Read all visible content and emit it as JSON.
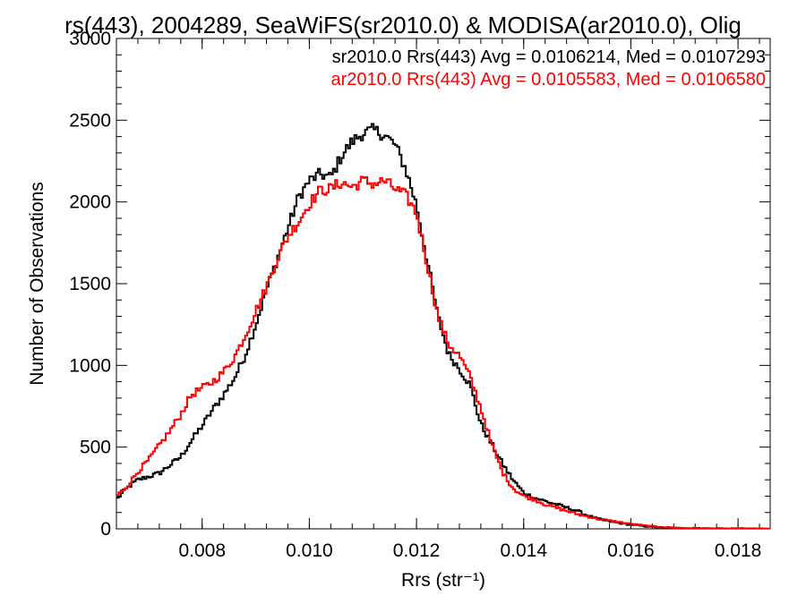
{
  "chart_data": {
    "type": "line",
    "title": "rs(443), 2004289, SeaWiFS(sr2010.0) & MODISA(ar2010.0), Olig",
    "xlabel": "Rrs (str⁻¹)",
    "ylabel": "Number of Observations",
    "xlim": [
      0.0064,
      0.0186
    ],
    "ylim": [
      0,
      3000
    ],
    "x_ticks": [
      "0.008",
      "0.010",
      "0.012",
      "0.014",
      "0.016",
      "0.018"
    ],
    "y_ticks": [
      "0",
      "500",
      "1000",
      "1500",
      "2000",
      "2500",
      "3000"
    ],
    "grid": false,
    "legend_position": "top-right",
    "step_style": "histogram",
    "series": [
      {
        "name": "sr2010.0 Rrs(443) Avg = 0.0106214, Med = 0.0107293",
        "color": "#000000",
        "points": [
          [
            0.0064,
            180
          ],
          [
            0.0066,
            250
          ],
          [
            0.0068,
            300
          ],
          [
            0.007,
            320
          ],
          [
            0.0072,
            340
          ],
          [
            0.0074,
            390
          ],
          [
            0.0076,
            440
          ],
          [
            0.0078,
            540
          ],
          [
            0.008,
            630
          ],
          [
            0.0082,
            730
          ],
          [
            0.0084,
            820
          ],
          [
            0.0086,
            920
          ],
          [
            0.0088,
            1060
          ],
          [
            0.009,
            1250
          ],
          [
            0.0092,
            1460
          ],
          [
            0.0094,
            1650
          ],
          [
            0.0096,
            1840
          ],
          [
            0.0098,
            2030
          ],
          [
            0.01,
            2130
          ],
          [
            0.0102,
            2170
          ],
          [
            0.0104,
            2150
          ],
          [
            0.0106,
            2280
          ],
          [
            0.0108,
            2370
          ],
          [
            0.011,
            2420
          ],
          [
            0.0112,
            2440
          ],
          [
            0.0114,
            2410
          ],
          [
            0.0116,
            2350
          ],
          [
            0.0118,
            2200
          ],
          [
            0.012,
            1980
          ],
          [
            0.0122,
            1640
          ],
          [
            0.0124,
            1300
          ],
          [
            0.0126,
            1070
          ],
          [
            0.0128,
            980
          ],
          [
            0.013,
            880
          ],
          [
            0.0132,
            640
          ],
          [
            0.0134,
            520
          ],
          [
            0.0136,
            400
          ],
          [
            0.0138,
            300
          ],
          [
            0.014,
            220
          ],
          [
            0.0142,
            190
          ],
          [
            0.0144,
            170
          ],
          [
            0.0146,
            150
          ],
          [
            0.0148,
            130
          ],
          [
            0.015,
            110
          ],
          [
            0.0152,
            80
          ],
          [
            0.0154,
            60
          ],
          [
            0.0156,
            45
          ],
          [
            0.0158,
            35
          ],
          [
            0.016,
            25
          ],
          [
            0.0162,
            18
          ],
          [
            0.0164,
            12
          ],
          [
            0.0166,
            8
          ],
          [
            0.0168,
            6
          ],
          [
            0.017,
            4
          ],
          [
            0.0172,
            3
          ],
          [
            0.0174,
            2
          ],
          [
            0.0176,
            2
          ],
          [
            0.0178,
            1
          ],
          [
            0.018,
            1
          ],
          [
            0.0182,
            1
          ],
          [
            0.0184,
            0
          ],
          [
            0.0186,
            0
          ]
        ]
      },
      {
        "name": "ar2010.0 Rrs(443) Avg = 0.0105583, Med = 0.0106580",
        "color": "#ff0000",
        "points": [
          [
            0.0064,
            200
          ],
          [
            0.0066,
            260
          ],
          [
            0.0068,
            350
          ],
          [
            0.007,
            420
          ],
          [
            0.0072,
            510
          ],
          [
            0.0074,
            600
          ],
          [
            0.0076,
            700
          ],
          [
            0.0078,
            820
          ],
          [
            0.008,
            860
          ],
          [
            0.0082,
            900
          ],
          [
            0.0084,
            960
          ],
          [
            0.0086,
            1050
          ],
          [
            0.0088,
            1180
          ],
          [
            0.009,
            1330
          ],
          [
            0.0092,
            1480
          ],
          [
            0.0094,
            1650
          ],
          [
            0.0096,
            1790
          ],
          [
            0.0098,
            1880
          ],
          [
            0.01,
            1990
          ],
          [
            0.0102,
            2070
          ],
          [
            0.0104,
            2080
          ],
          [
            0.0106,
            2120
          ],
          [
            0.0108,
            2090
          ],
          [
            0.011,
            2130
          ],
          [
            0.0112,
            2110
          ],
          [
            0.0114,
            2130
          ],
          [
            0.0116,
            2080
          ],
          [
            0.0118,
            2040
          ],
          [
            0.012,
            1930
          ],
          [
            0.0122,
            1620
          ],
          [
            0.0124,
            1300
          ],
          [
            0.0126,
            1130
          ],
          [
            0.0128,
            1060
          ],
          [
            0.013,
            930
          ],
          [
            0.0132,
            740
          ],
          [
            0.0134,
            520
          ],
          [
            0.0136,
            350
          ],
          [
            0.0138,
            250
          ],
          [
            0.014,
            200
          ],
          [
            0.0142,
            180
          ],
          [
            0.0144,
            150
          ],
          [
            0.0146,
            130
          ],
          [
            0.0148,
            110
          ],
          [
            0.015,
            90
          ],
          [
            0.0152,
            75
          ],
          [
            0.0154,
            60
          ],
          [
            0.0156,
            50
          ],
          [
            0.0158,
            40
          ],
          [
            0.016,
            30
          ],
          [
            0.0162,
            22
          ],
          [
            0.0164,
            15
          ],
          [
            0.0166,
            10
          ],
          [
            0.0168,
            7
          ],
          [
            0.017,
            5
          ],
          [
            0.0172,
            4
          ],
          [
            0.0174,
            3
          ],
          [
            0.0176,
            2
          ],
          [
            0.0178,
            2
          ],
          [
            0.018,
            1
          ],
          [
            0.0182,
            1
          ],
          [
            0.0184,
            0
          ],
          [
            0.0186,
            0
          ]
        ]
      }
    ]
  }
}
